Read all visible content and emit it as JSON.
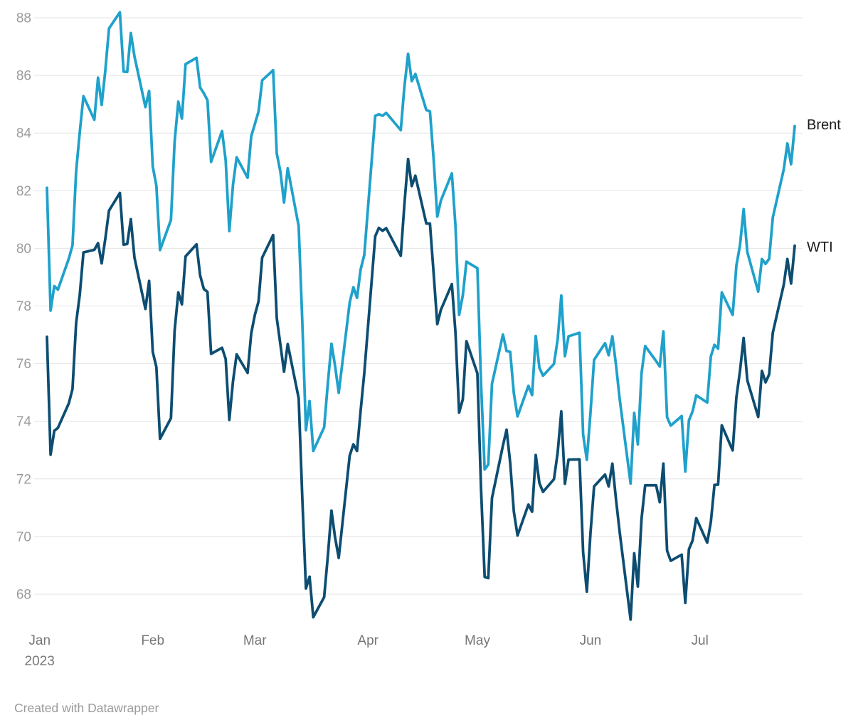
{
  "footer": {
    "attribution": "Created with Datawrapper"
  },
  "chart_data": {
    "type": "line",
    "title": "",
    "xlabel": "",
    "ylabel": "",
    "x_unit": "date",
    "x_range": [
      "2023-01-03",
      "2023-07-27"
    ],
    "ylim": [
      66.5,
      88.6
    ],
    "yticks": [
      68,
      70,
      72,
      74,
      76,
      78,
      80,
      82,
      84,
      86,
      88
    ],
    "grid": "horizontal",
    "legend_position": "direct-labels-right",
    "background": "#ffffff",
    "colors": {
      "brent": "#1fa1cb",
      "wti": "#0d4d71",
      "gridline": "#e4e4e4",
      "tick_text": "#9b9b9b",
      "month_text": "#767676"
    },
    "x_ticks": [
      {
        "label": "Jan",
        "date": "2023-01-01",
        "sublabel": "2023"
      },
      {
        "label": "Feb",
        "date": "2023-02-01"
      },
      {
        "label": "Mar",
        "date": "2023-03-01"
      },
      {
        "label": "Apr",
        "date": "2023-04-01"
      },
      {
        "label": "May",
        "date": "2023-05-01"
      },
      {
        "label": "Jun",
        "date": "2023-06-01"
      },
      {
        "label": "Jul",
        "date": "2023-07-01"
      }
    ],
    "dates": [
      "2023-01-03",
      "2023-01-04",
      "2023-01-05",
      "2023-01-06",
      "2023-01-09",
      "2023-01-10",
      "2023-01-11",
      "2023-01-12",
      "2023-01-13",
      "2023-01-16",
      "2023-01-17",
      "2023-01-18",
      "2023-01-19",
      "2023-01-20",
      "2023-01-23",
      "2023-01-24",
      "2023-01-25",
      "2023-01-26",
      "2023-01-27",
      "2023-01-30",
      "2023-01-31",
      "2023-02-01",
      "2023-02-02",
      "2023-02-03",
      "2023-02-06",
      "2023-02-07",
      "2023-02-08",
      "2023-02-09",
      "2023-02-10",
      "2023-02-13",
      "2023-02-14",
      "2023-02-15",
      "2023-02-16",
      "2023-02-17",
      "2023-02-20",
      "2023-02-21",
      "2023-02-22",
      "2023-02-23",
      "2023-02-24",
      "2023-02-27",
      "2023-02-28",
      "2023-03-01",
      "2023-03-02",
      "2023-03-03",
      "2023-03-06",
      "2023-03-07",
      "2023-03-08",
      "2023-03-09",
      "2023-03-10",
      "2023-03-13",
      "2023-03-14",
      "2023-03-15",
      "2023-03-16",
      "2023-03-17",
      "2023-03-20",
      "2023-03-21",
      "2023-03-22",
      "2023-03-23",
      "2023-03-24",
      "2023-03-27",
      "2023-03-28",
      "2023-03-29",
      "2023-03-30",
      "2023-03-31",
      "2023-04-03",
      "2023-04-04",
      "2023-04-05",
      "2023-04-06",
      "2023-04-10",
      "2023-04-11",
      "2023-04-12",
      "2023-04-13",
      "2023-04-14",
      "2023-04-17",
      "2023-04-18",
      "2023-04-19",
      "2023-04-20",
      "2023-04-21",
      "2023-04-24",
      "2023-04-25",
      "2023-04-26",
      "2023-04-27",
      "2023-04-28",
      "2023-05-01",
      "2023-05-02",
      "2023-05-03",
      "2023-05-04",
      "2023-05-05",
      "2023-05-08",
      "2023-05-09",
      "2023-05-10",
      "2023-05-11",
      "2023-05-12",
      "2023-05-15",
      "2023-05-16",
      "2023-05-17",
      "2023-05-18",
      "2023-05-19",
      "2023-05-22",
      "2023-05-23",
      "2023-05-24",
      "2023-05-25",
      "2023-05-26",
      "2023-05-29",
      "2023-05-30",
      "2023-05-31",
      "2023-06-01",
      "2023-06-02",
      "2023-06-05",
      "2023-06-06",
      "2023-06-07",
      "2023-06-08",
      "2023-06-09",
      "2023-06-12",
      "2023-06-13",
      "2023-06-14",
      "2023-06-15",
      "2023-06-16",
      "2023-06-19",
      "2023-06-20",
      "2023-06-21",
      "2023-06-22",
      "2023-06-23",
      "2023-06-26",
      "2023-06-27",
      "2023-06-28",
      "2023-06-29",
      "2023-06-30",
      "2023-07-03",
      "2023-07-04",
      "2023-07-05",
      "2023-07-06",
      "2023-07-07",
      "2023-07-10",
      "2023-07-11",
      "2023-07-12",
      "2023-07-13",
      "2023-07-14",
      "2023-07-17",
      "2023-07-18",
      "2023-07-19",
      "2023-07-20",
      "2023-07-21",
      "2023-07-24",
      "2023-07-25",
      "2023-07-26",
      "2023-07-27"
    ],
    "series": [
      {
        "name": "Brent",
        "color": "#1fa1cb",
        "values": [
          82.1,
          77.84,
          78.69,
          78.57,
          79.65,
          80.1,
          82.67,
          84.03,
          85.28,
          84.46,
          85.92,
          84.98,
          86.16,
          87.63,
          88.19,
          86.13,
          86.12,
          87.47,
          86.66,
          84.9,
          85.46,
          82.84,
          82.17,
          79.94,
          80.99,
          83.69,
          85.09,
          84.5,
          86.39,
          86.61,
          85.58,
          85.38,
          85.14,
          83.0,
          84.07,
          83.05,
          80.6,
          82.21,
          83.16,
          82.45,
          83.89,
          84.31,
          84.75,
          85.83,
          86.18,
          83.29,
          82.66,
          81.59,
          82.78,
          80.77,
          77.45,
          73.69,
          74.7,
          72.97,
          73.79,
          75.32,
          76.69,
          75.91,
          74.99,
          78.12,
          78.65,
          78.28,
          79.27,
          79.77,
          84.6,
          84.65,
          84.6,
          84.7,
          84.1,
          85.61,
          86.75,
          85.8,
          86.05,
          84.8,
          84.75,
          83.12,
          81.1,
          81.66,
          82.6,
          80.77,
          77.69,
          78.37,
          79.54,
          79.31,
          75.32,
          72.33,
          72.5,
          75.3,
          77.01,
          76.44,
          76.41,
          74.98,
          74.17,
          75.23,
          74.91,
          76.96,
          75.86,
          75.58,
          75.99,
          76.84,
          78.36,
          76.26,
          76.95,
          77.07,
          73.54,
          72.66,
          74.28,
          76.13,
          76.71,
          76.29,
          76.95,
          75.96,
          74.79,
          71.84,
          74.29,
          73.2,
          75.67,
          76.61,
          76.09,
          75.9,
          77.12,
          74.14,
          73.85,
          74.18,
          72.26,
          74.03,
          74.34,
          74.9,
          74.65,
          76.25,
          76.65,
          76.52,
          78.47,
          77.69,
          79.4,
          80.11,
          81.36,
          79.87,
          78.5,
          79.63,
          79.46,
          79.64,
          81.07,
          82.74,
          83.64,
          82.92,
          84.24
        ]
      },
      {
        "name": "WTI",
        "color": "#0d4d71",
        "values": [
          76.93,
          72.84,
          73.67,
          73.77,
          74.63,
          75.12,
          77.41,
          78.39,
          79.86,
          79.95,
          80.18,
          79.48,
          80.33,
          81.31,
          81.92,
          80.13,
          80.15,
          81.01,
          79.68,
          77.9,
          78.87,
          76.41,
          75.88,
          73.39,
          74.11,
          77.14,
          78.47,
          78.06,
          79.72,
          80.14,
          79.06,
          78.59,
          78.49,
          76.34,
          76.55,
          76.16,
          74.05,
          75.39,
          76.32,
          75.68,
          77.05,
          77.69,
          78.16,
          79.68,
          80.46,
          77.58,
          76.66,
          75.72,
          76.68,
          74.8,
          71.33,
          68.2,
          68.61,
          67.2,
          67.9,
          69.33,
          70.9,
          69.96,
          69.26,
          72.81,
          73.2,
          72.97,
          74.37,
          75.67,
          80.42,
          80.71,
          80.61,
          80.7,
          79.74,
          81.53,
          83.1,
          82.16,
          82.52,
          80.86,
          80.86,
          79.16,
          77.37,
          77.87,
          78.76,
          77.07,
          74.3,
          74.76,
          76.78,
          75.66,
          71.66,
          68.6,
          68.56,
          71.34,
          73.16,
          73.71,
          72.56,
          70.87,
          70.04,
          71.11,
          70.86,
          72.83,
          71.86,
          71.55,
          71.99,
          72.91,
          74.34,
          71.83,
          72.67,
          72.68,
          69.46,
          68.09,
          70.1,
          71.74,
          72.15,
          71.74,
          72.53,
          71.29,
          70.17,
          67.12,
          69.42,
          68.27,
          70.62,
          71.78,
          71.78,
          71.19,
          72.53,
          69.51,
          69.16,
          69.37,
          67.7,
          69.56,
          69.86,
          70.64,
          69.79,
          70.5,
          71.79,
          71.8,
          73.86,
          72.99,
          74.83,
          75.75,
          76.89,
          75.42,
          74.15,
          75.75,
          75.35,
          75.63,
          77.07,
          78.74,
          79.63,
          78.78,
          80.09
        ]
      }
    ]
  }
}
